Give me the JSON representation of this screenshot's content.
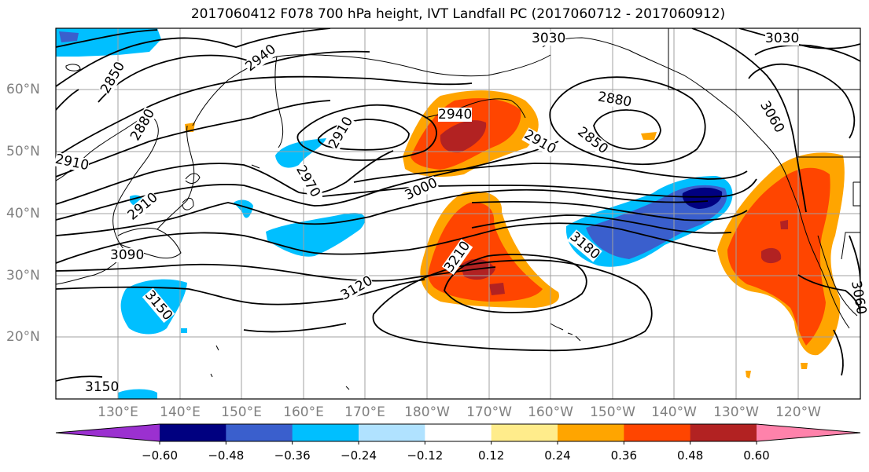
{
  "title": "2017060412 F078 700 hPa height, IVT Landfall PC (2017060712 - 2017060912)",
  "colors": {
    "grid": "#a0a0a0",
    "coast": "#000000",
    "contour": "#000000",
    "axis_label": "#808080"
  },
  "map": {
    "lat_labels": [
      "60°N",
      "50°N",
      "40°N",
      "30°N",
      "20°N"
    ],
    "lon_labels": [
      "130°E",
      "140°E",
      "150°E",
      "160°E",
      "170°E",
      "180°W",
      "170°W",
      "160°W",
      "150°W",
      "140°W",
      "130°W",
      "120°W"
    ]
  },
  "contour_labels": [
    {
      "text": "3030"
    },
    {
      "text": "3030"
    },
    {
      "text": "3060"
    },
    {
      "text": "2940"
    },
    {
      "text": "2850"
    },
    {
      "text": "2880"
    },
    {
      "text": "2910"
    },
    {
      "text": "2940"
    },
    {
      "text": "2910"
    },
    {
      "text": "2880"
    },
    {
      "text": "2910"
    },
    {
      "text": "2850"
    },
    {
      "text": "2970"
    },
    {
      "text": "2910"
    },
    {
      "text": "3000"
    },
    {
      "text": "3090"
    },
    {
      "text": "3210"
    },
    {
      "text": "3180"
    },
    {
      "text": "3120"
    },
    {
      "text": "3150"
    },
    {
      "text": "3150"
    },
    {
      "text": "3060"
    }
  ],
  "colorbar": {
    "colors": [
      "#9b30d0",
      "#000080",
      "#3a5fcd",
      "#00bfff",
      "#b0e2ff",
      "#ffffff",
      "#ffec8b",
      "#ffa500",
      "#ff4500",
      "#b22222",
      "#ff82ab"
    ],
    "ticks": [
      "−0.60",
      "−0.48",
      "−0.36",
      "−0.24",
      "−0.12",
      "0.12",
      "0.24",
      "0.36",
      "0.48",
      "0.60"
    ]
  }
}
